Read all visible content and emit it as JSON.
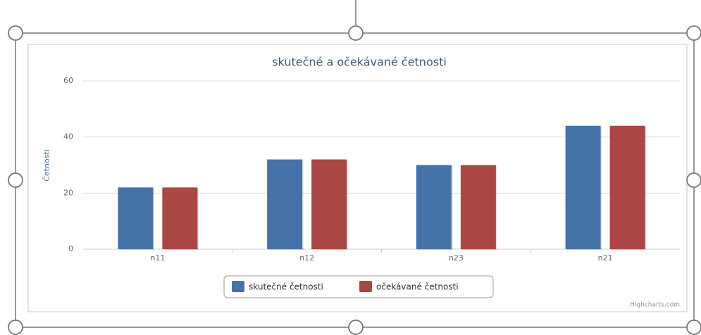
{
  "chart_data": {
    "type": "bar",
    "title": "skutečné a očekávané četnosti",
    "y_label": "Četnosti",
    "credit": "Highcharts.com",
    "categories": [
      "n11",
      "n12",
      "n23",
      "n21"
    ],
    "series": [
      {
        "name": "skutečné četnosti",
        "color": "#4572a7",
        "values": [
          22,
          32,
          30,
          44
        ]
      },
      {
        "name": "očekávané četnosti",
        "color": "#aa4643",
        "values": [
          22,
          32,
          30,
          44
        ]
      }
    ],
    "ylim": [
      0,
      60
    ],
    "yticks": [
      0,
      20,
      40,
      60
    ],
    "grid": true,
    "legend": "bottom"
  }
}
